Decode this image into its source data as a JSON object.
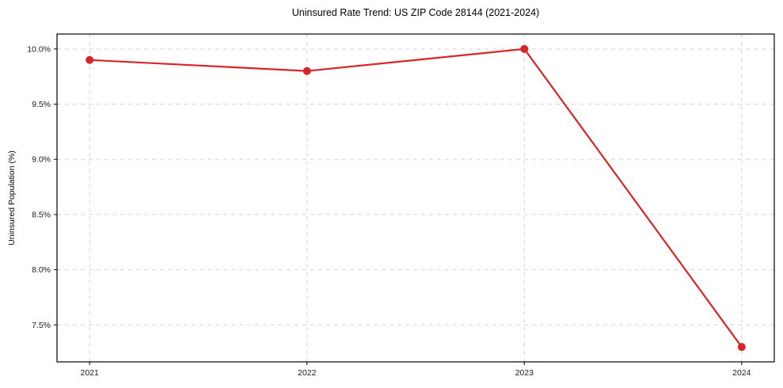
{
  "title": "Uninsured Rate Trend: US ZIP Code 28144 (2021-2024)",
  "chart_data": {
    "type": "line",
    "title": "Uninsured Rate Trend: US ZIP Code 28144 (2021-2024)",
    "xlabel": "",
    "ylabel": "Uninsured Population (%)",
    "x": [
      2021,
      2022,
      2023,
      2024
    ],
    "values": [
      9.9,
      9.8,
      10.0,
      7.3
    ],
    "xticks": [
      2021,
      2022,
      2023,
      2024
    ],
    "xtick_labels": [
      "2021",
      "2022",
      "2023",
      "2024"
    ],
    "yticks": [
      7.5,
      8.0,
      8.5,
      9.0,
      9.5,
      10.0
    ],
    "ytick_labels": [
      "7.5%",
      "8.0%",
      "8.5%",
      "9.0%",
      "9.5%",
      "10.0%"
    ],
    "xlim": [
      2020.85,
      2024.15
    ],
    "ylim": [
      7.165,
      10.135
    ],
    "grid": true,
    "legend": false,
    "line_color": "#d62728",
    "marker": "circle",
    "grid_color": "#d4d4d4",
    "spine_color": "#000000",
    "background": "#ffffff"
  }
}
